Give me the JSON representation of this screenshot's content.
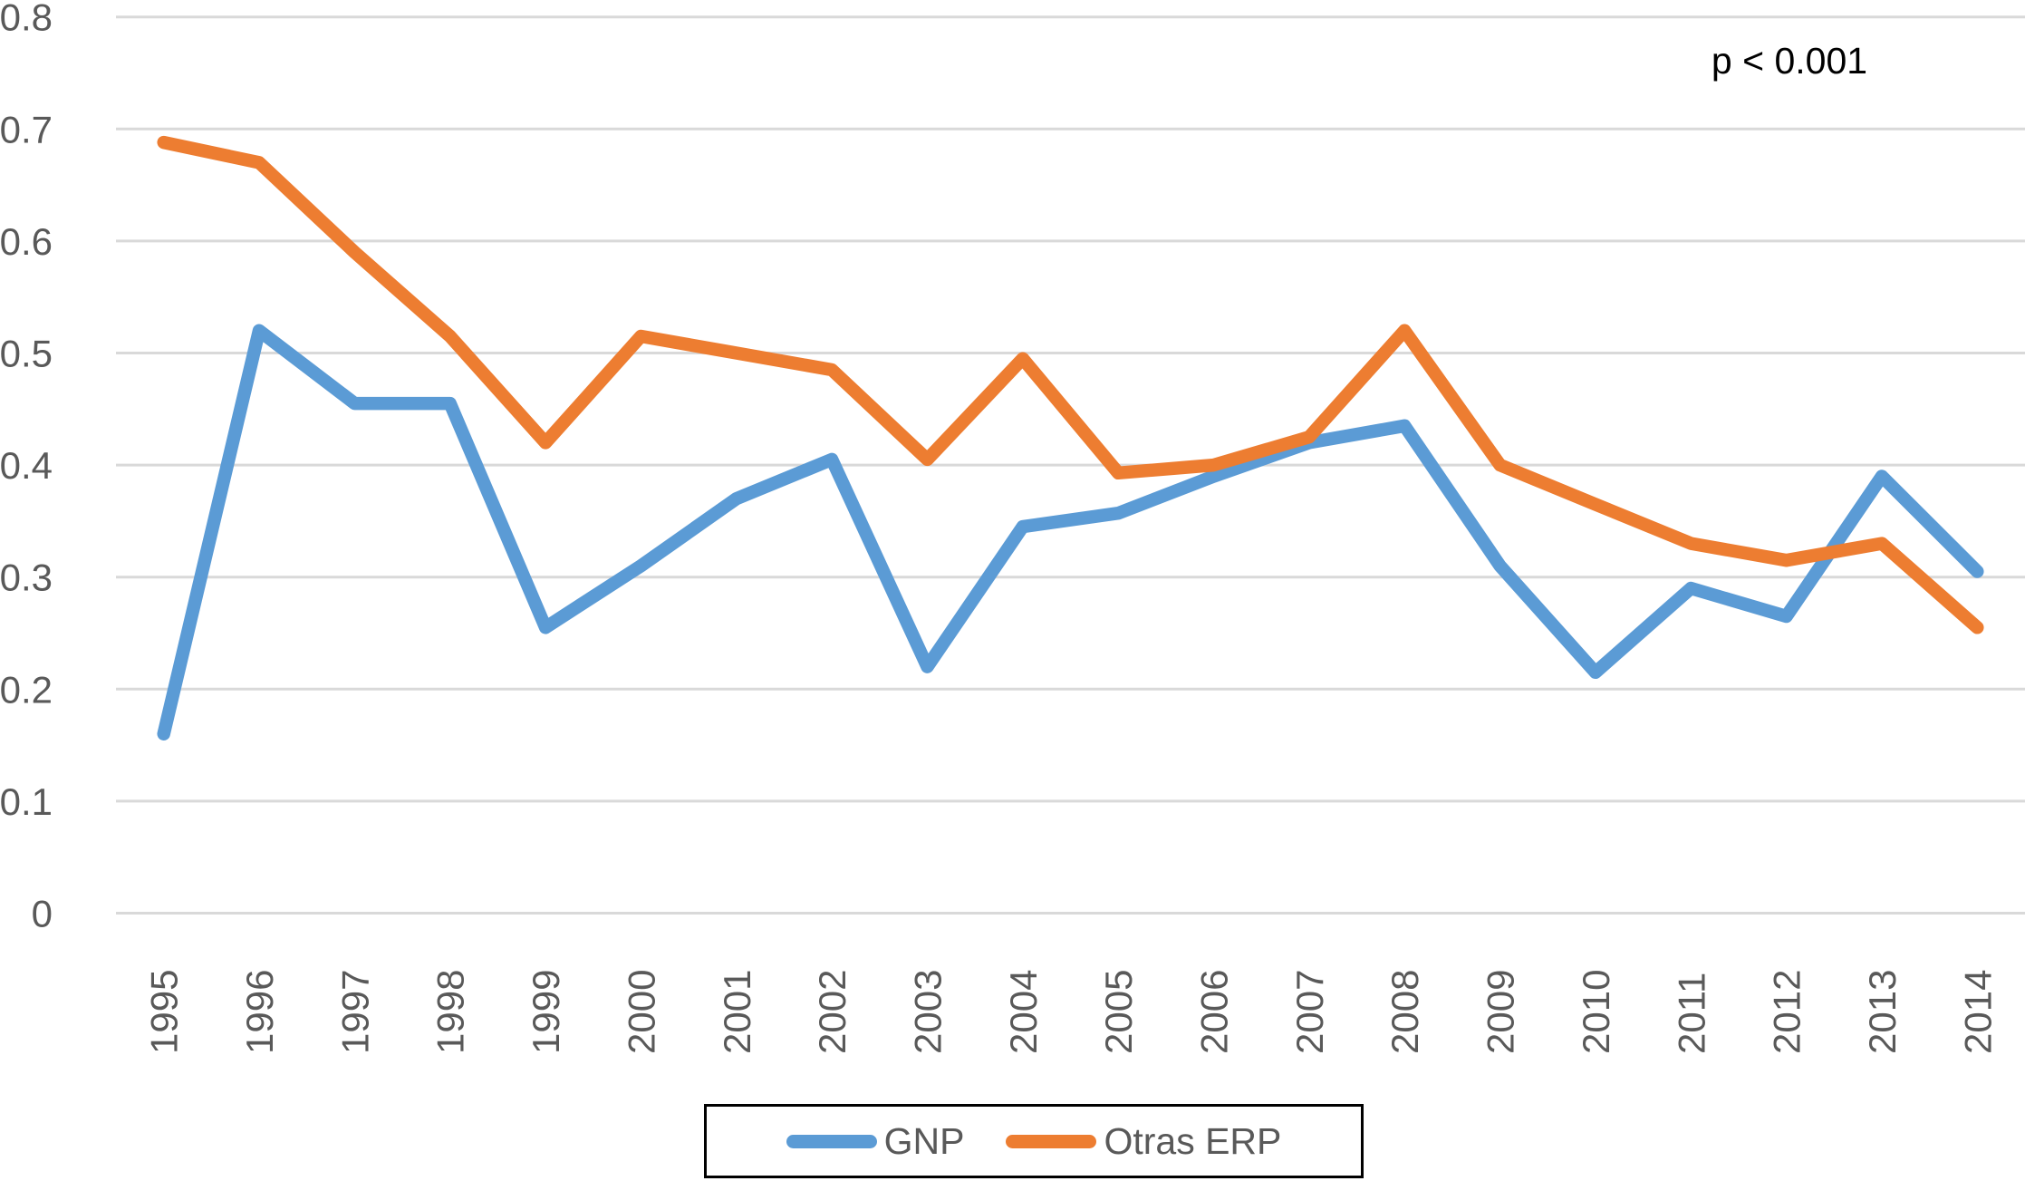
{
  "annotation": {
    "text": "p < 0.001"
  },
  "legend": {
    "items": [
      {
        "label": "GNP",
        "color": "#5B9BD5"
      },
      {
        "label": "Otras ERP",
        "color": "#ED7D31"
      }
    ]
  },
  "chart_data": {
    "type": "line",
    "title": "",
    "xlabel": "",
    "ylabel": "",
    "annotation": "p < 0.001",
    "categories": [
      "1995",
      "1996",
      "1997",
      "1998",
      "1999",
      "2000",
      "2001",
      "2002",
      "2003",
      "2004",
      "2005",
      "2006",
      "2007",
      "2008",
      "2009",
      "2010",
      "2011",
      "2012",
      "2013",
      "2014"
    ],
    "series": [
      {
        "name": "GNP",
        "color": "#5B9BD5",
        "values": [
          0.16,
          0.52,
          0.455,
          0.455,
          0.255,
          0.31,
          0.37,
          0.405,
          0.22,
          0.345,
          0.357,
          0.39,
          0.42,
          0.435,
          0.31,
          0.215,
          0.29,
          0.265,
          0.39,
          0.305
        ]
      },
      {
        "name": "Otras ERP",
        "color": "#ED7D31",
        "values": [
          0.688,
          0.67,
          0.59,
          0.515,
          0.42,
          0.515,
          0.5,
          0.485,
          0.405,
          0.495,
          0.393,
          0.4,
          0.425,
          0.52,
          0.4,
          0.365,
          0.33,
          0.315,
          0.33,
          0.255
        ]
      }
    ],
    "ylim": [
      0,
      0.8
    ],
    "ytick_step": 0.1,
    "ytick_labels": [
      "0",
      "0.1",
      "0.2",
      "0.3",
      "0.4",
      "0.5",
      "0.6",
      "0.7",
      "0.8"
    ],
    "grid": "horizontal-only",
    "gridline_color": "#D9D9D9",
    "axis_label_color": "#595959",
    "legend_position": "bottom",
    "x_labels_rotated_degrees": 90
  }
}
